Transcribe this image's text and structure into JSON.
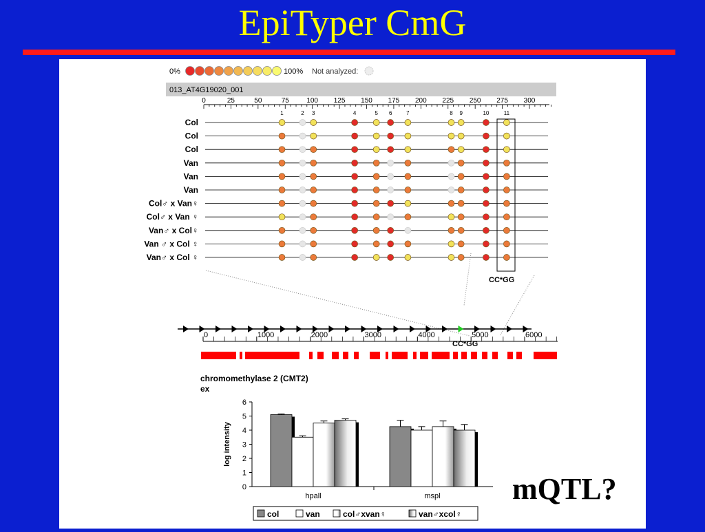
{
  "slide": {
    "title": "EpiTyper CmG",
    "mqtl": "mQTL?"
  },
  "colors": {
    "background": "#0b1fd0",
    "title": "#ffff00",
    "rule": "#ff1a1a",
    "gene_bar": "#ff0000"
  },
  "scale_legend": {
    "low": "0%",
    "high": "100%",
    "not_analyzed": "Not analyzed:",
    "swatches": [
      "#e82828",
      "#ea4a2e",
      "#ec6a36",
      "#ee8840",
      "#f0a24a",
      "#f2b852",
      "#f4cc58",
      "#f6dc5e",
      "#f8ec66",
      "#fafa70"
    ]
  },
  "amplicon": {
    "name": "013_AT4G19020_001",
    "ticks": [
      "0",
      "25",
      "50",
      "75",
      "100",
      "125",
      "150",
      "175",
      "200",
      "225",
      "250",
      "275",
      "300"
    ],
    "cpg_labels": [
      {
        "n": "1",
        "bp": 72
      },
      {
        "n": "2",
        "bp": 91
      },
      {
        "n": "3",
        "bp": 101
      },
      {
        "n": "4",
        "bp": 139
      },
      {
        "n": "5",
        "bp": 159
      },
      {
        "n": "6",
        "bp": 172
      },
      {
        "n": "7",
        "bp": 188
      },
      {
        "n": "8",
        "bp": 228
      },
      {
        "n": "9",
        "bp": 237
      },
      {
        "n": "10",
        "bp": 260
      },
      {
        "n": "11",
        "bp": 279
      }
    ],
    "highlight_label": "CC*GG"
  },
  "samples": [
    {
      "label": "Col",
      "calls": [
        "y",
        "g",
        "y",
        "r",
        "y",
        "r",
        "y",
        "y",
        "y",
        "r",
        "y"
      ]
    },
    {
      "label": "Col",
      "calls": [
        "o",
        "g",
        "y",
        "r",
        "y",
        "r",
        "y",
        "y",
        "y",
        "r",
        "y"
      ]
    },
    {
      "label": "Col",
      "calls": [
        "o",
        "g",
        "o",
        "r",
        "y",
        "r",
        "y",
        "o",
        "y",
        "r",
        "y"
      ]
    },
    {
      "label": "Van",
      "calls": [
        "o",
        "g",
        "o",
        "r",
        "o",
        "g",
        "o",
        "g",
        "o",
        "r",
        "o"
      ]
    },
    {
      "label": "Van",
      "calls": [
        "o",
        "g",
        "o",
        "r",
        "o",
        "g",
        "o",
        "g",
        "o",
        "r",
        "o"
      ]
    },
    {
      "label": "Van",
      "calls": [
        "o",
        "g",
        "o",
        "r",
        "o",
        "g",
        "o",
        "g",
        "o",
        "r",
        "o"
      ]
    },
    {
      "label": "Col♂ x Van♀",
      "calls": [
        "o",
        "g",
        "o",
        "r",
        "o",
        "r",
        "y",
        "o",
        "o",
        "r",
        "o"
      ]
    },
    {
      "label": "Col♂ x Van ♀",
      "calls": [
        "y",
        "g",
        "o",
        "r",
        "o",
        "g",
        "o",
        "y",
        "o",
        "r",
        "o"
      ]
    },
    {
      "label": "Van♂ x Col♀",
      "calls": [
        "o",
        "g",
        "o",
        "r",
        "o",
        "r",
        "g",
        "o",
        "o",
        "r",
        "o"
      ]
    },
    {
      "label": "Van ♂ x Col ♀",
      "calls": [
        "o",
        "g",
        "o",
        "r",
        "o",
        "r",
        "o",
        "y",
        "o",
        "r",
        "o"
      ]
    },
    {
      "label": "Van♂ x Col ♀",
      "calls": [
        "o",
        "g",
        "o",
        "r",
        "y",
        "r",
        "y",
        "y",
        "o",
        "r",
        "o"
      ]
    }
  ],
  "gene": {
    "ticks": [
      "0",
      "1000",
      "2000",
      "3000",
      "4000",
      "5000",
      "6000"
    ],
    "region_label": "CC*GG",
    "description": "chromomethylase 2 (CMT2)",
    "exon_label": "ex"
  },
  "chart_data": {
    "type": "bar",
    "categories": [
      "hpall",
      "mspl"
    ],
    "series": [
      {
        "name": "col",
        "values": [
          5.1,
          4.25
        ],
        "errors": [
          0.05,
          0.45
        ]
      },
      {
        "name": "van",
        "values": [
          3.5,
          4.0
        ],
        "errors": [
          0.1,
          0.25
        ]
      },
      {
        "name": "col♂xvan♀",
        "values": [
          4.5,
          4.25
        ],
        "errors": [
          0.15,
          0.4
        ]
      },
      {
        "name": "van♂xcol♀",
        "values": [
          4.7,
          4.0
        ],
        "errors": [
          0.1,
          0.4
        ]
      }
    ],
    "ylabel": "log intensity",
    "ylim": [
      0,
      6
    ],
    "yticks": [
      "0",
      "1",
      "2",
      "3",
      "4",
      "5",
      "6"
    ],
    "grid": false,
    "legend_position": "bottom"
  }
}
